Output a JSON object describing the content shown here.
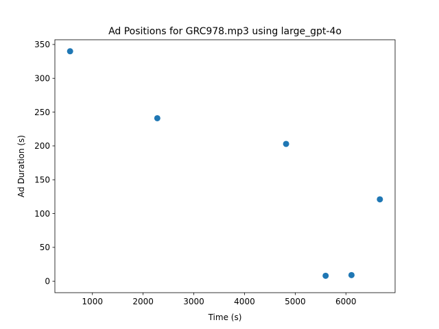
{
  "chart_data": {
    "type": "scatter",
    "title": "Ad Positions for GRC978.mp3 using large_gpt-4o",
    "xlabel": "Time (s)",
    "ylabel": "Ad Duration (s)",
    "xlim": [
      260,
      6970
    ],
    "ylim": [
      -17,
      357
    ],
    "xticks": [
      1000,
      2000,
      3000,
      4000,
      5000,
      6000
    ],
    "yticks": [
      0,
      50,
      100,
      150,
      200,
      250,
      300,
      350
    ],
    "grid": false,
    "legend": "none",
    "marker_color": "#1f77b4",
    "series": [
      {
        "x": [
          560,
          2280,
          4820,
          5600,
          6110,
          6670
        ],
        "y": [
          340,
          241,
          203,
          8,
          9,
          121
        ]
      }
    ]
  }
}
